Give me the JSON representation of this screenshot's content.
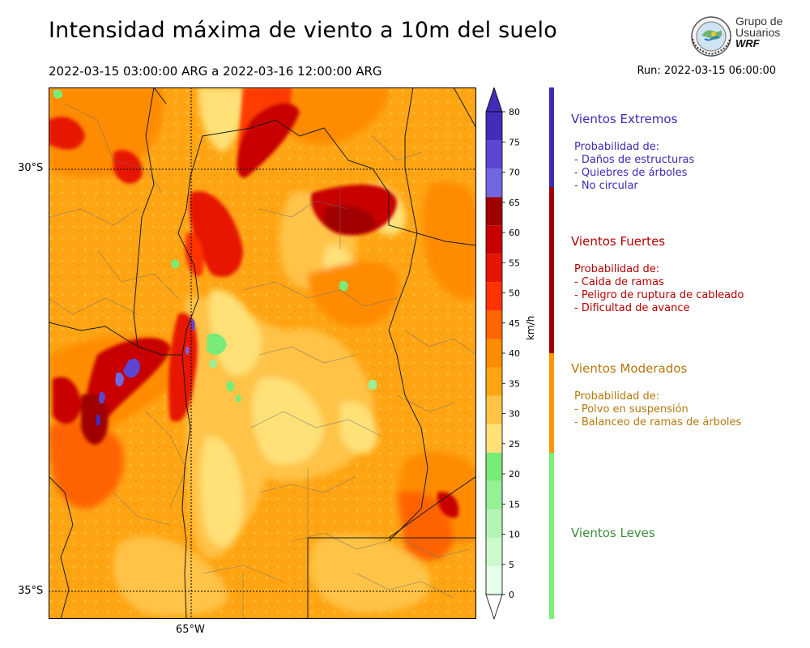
{
  "header": {
    "title": "Intensidad máxima de viento a 10m del suelo",
    "period": "2022-03-15 03:00:00 ARG  a  2022-03-16 12:00:00 ARG",
    "run": "Run: 2022-03-15 06:00:00"
  },
  "logo": {
    "line1": "Grupo de",
    "line2": "Usuarios",
    "line3": "WRF"
  },
  "map": {
    "lat_labels": [
      "30°S",
      "35°S"
    ],
    "lon_labels": [
      "65°W"
    ]
  },
  "colorbar": {
    "unit": "km/h",
    "ticks": [
      "0",
      "5",
      "10",
      "15",
      "20",
      "25",
      "30",
      "35",
      "40",
      "45",
      "50",
      "55",
      "60",
      "65",
      "70",
      "75",
      "80"
    ],
    "colors": [
      "#e6ffe6",
      "#cdfacd",
      "#b4f5b4",
      "#96f096",
      "#78eb78",
      "#ffe178",
      "#ffc346",
      "#ffa514",
      "#ff8c00",
      "#ff6400",
      "#ff3200",
      "#e61400",
      "#c80000",
      "#a00000",
      "#7366e1",
      "#5a46d2",
      "#412db9"
    ],
    "extend_high_color": "#412db9",
    "extend_low_color": "#ffffff"
  },
  "categories": [
    {
      "title": "Vientos Extremos",
      "desc": "Probabilidad de:\n- Daños de estructuras\n- Quiebres de árboles\n- No circular",
      "color": "#3c2db4",
      "bar_color": "#3c2db4",
      "range_kmh": [
        65,
        80
      ]
    },
    {
      "title": "Vientos Fuertes",
      "desc": "Probabilidad de:\n- Caida de ramas\n- Peligro de ruptura de cableado\n- Dificultad de avance",
      "color": "#b40000",
      "bar_color": "#a00000",
      "range_kmh": [
        40,
        65
      ]
    },
    {
      "title": "Vientos Moderados",
      "desc": "Probabilidad de:\n- Polvo en suspensión\n- Balanceo de ramas de árboles",
      "color": "#b4780a",
      "bar_color": "#ff9600",
      "range_kmh": [
        25,
        40
      ]
    },
    {
      "title": "Vientos Leves",
      "desc": "",
      "color": "#3c8c3c",
      "bar_color": "#78f078",
      "range_kmh": [
        0,
        25
      ]
    }
  ]
}
